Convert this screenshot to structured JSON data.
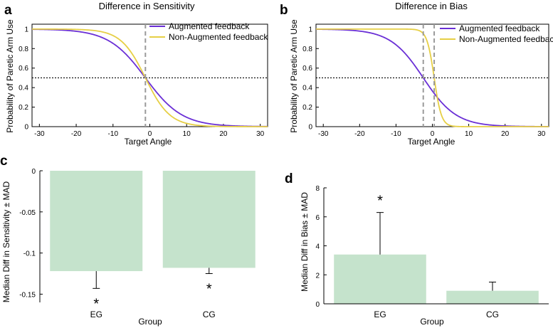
{
  "chart_data": [
    {
      "panel": "a",
      "type": "line",
      "title": "Difference in Sensitivity",
      "xlabel": "Target Angle",
      "ylabel": "Probability of Paretic Arm Use",
      "xlim": [
        -32,
        32
      ],
      "ylim": [
        0,
        1.05
      ],
      "xticks": [
        -30,
        -20,
        -10,
        0,
        10,
        20,
        30
      ],
      "yticks": [
        0,
        0.2,
        0.4,
        0.6,
        0.8,
        1
      ],
      "ytick_labels": [
        "0",
        "0.2",
        "0.4",
        "0.6",
        "0.8",
        "1"
      ],
      "series": [
        {
          "name": "Augmented feedback",
          "color": "#6a2fd6",
          "model": "logistic",
          "midpoint": -1.2,
          "slope": 0.2
        },
        {
          "name": "Non-Augmented feedback",
          "color": "#e6cf45",
          "model": "logistic",
          "midpoint": -1.2,
          "slope": 0.3
        }
      ],
      "reference_lines": {
        "horizontal_y": 0.5,
        "vertical_x": [
          -1.2
        ]
      }
    },
    {
      "panel": "b",
      "type": "line",
      "title": "Difference in Bias",
      "xlabel": "Target Angle",
      "ylabel": "Probability of Paretic Arm Use",
      "xlim": [
        -32,
        32
      ],
      "ylim": [
        0,
        1.05
      ],
      "xticks": [
        -30,
        -20,
        -10,
        0,
        10,
        20,
        30
      ],
      "yticks": [
        0,
        0.2,
        0.4,
        0.6,
        0.8,
        1
      ],
      "ytick_labels": [
        "0",
        "0.2",
        "0.4",
        "0.6",
        "0.8",
        "1"
      ],
      "series": [
        {
          "name": "Augmented feedback",
          "color": "#6a2fd6",
          "model": "logistic",
          "midpoint": -2.5,
          "slope": 0.22
        },
        {
          "name": "Non-Augmented feedback",
          "color": "#e6cf45",
          "model": "logistic",
          "midpoint": 0.5,
          "slope": 1.0
        }
      ],
      "reference_lines": {
        "horizontal_y": 0.5,
        "vertical_x": [
          -2.5,
          0.5
        ]
      }
    },
    {
      "panel": "c",
      "type": "bar",
      "xlabel": "Group",
      "ylabel": "Median Diff in Sensitivity ± MAD",
      "categories": [
        "EG",
        "CG"
      ],
      "values": [
        -0.122,
        -0.118
      ],
      "errors": [
        0.021,
        0.007
      ],
      "significance": [
        "*",
        "*"
      ],
      "ylim": [
        -0.16,
        0
      ],
      "yticks": [
        0,
        -0.05,
        -0.1,
        -0.15
      ],
      "ytick_labels": [
        "0",
        "-0.05",
        "-0.1",
        "-0.15"
      ],
      "bar_color": "#c5e3cc"
    },
    {
      "panel": "d",
      "type": "bar",
      "xlabel": "Group",
      "ylabel": "Median Diff in Bias ± MAD",
      "categories": [
        "EG",
        "CG"
      ],
      "values": [
        3.4,
        0.9
      ],
      "errors": [
        2.9,
        0.6
      ],
      "significance": [
        "*",
        ""
      ],
      "ylim": [
        0,
        8
      ],
      "yticks": [
        0,
        2,
        4,
        6,
        8
      ],
      "ytick_labels": [
        "0",
        "2",
        "4",
        "6",
        "8"
      ],
      "bar_color": "#c5e3cc"
    }
  ]
}
